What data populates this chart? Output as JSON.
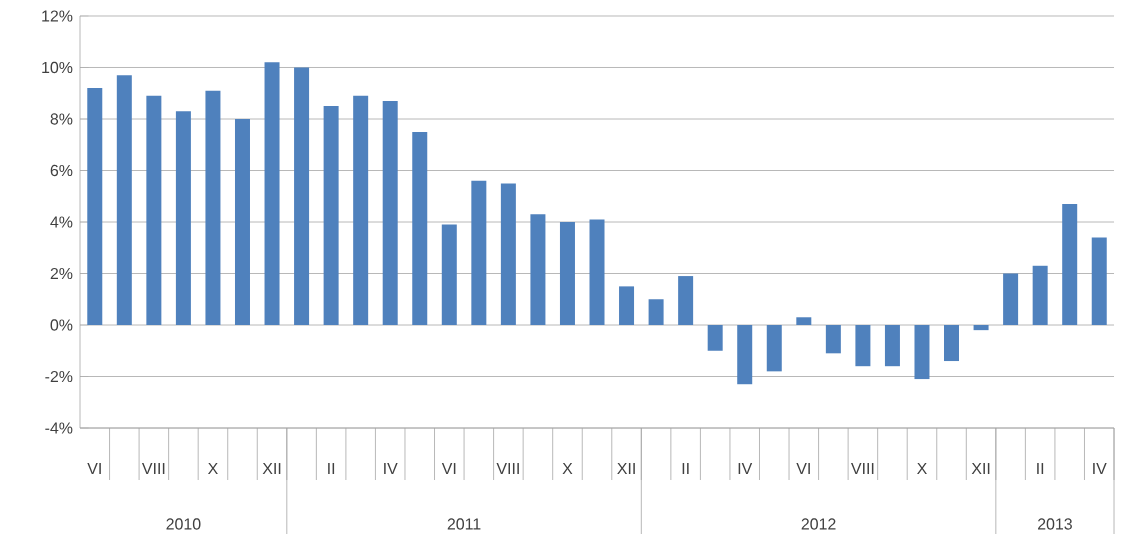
{
  "chart_data": {
    "type": "bar",
    "color": "#4f81bd",
    "categories": [
      "VI",
      null,
      "VIII",
      null,
      "X",
      null,
      "XII",
      null,
      "II",
      null,
      "IV",
      null,
      "VI",
      null,
      "VIII",
      null,
      "X",
      null,
      "XII",
      null,
      "II",
      null,
      "IV",
      null,
      "VI",
      null,
      "VIII",
      null,
      "X",
      null,
      "XII",
      null,
      "II",
      null,
      "IV"
    ],
    "values": [
      9.2,
      9.7,
      8.9,
      8.3,
      9.1,
      8.0,
      10.2,
      10.0,
      8.5,
      8.9,
      8.7,
      7.5,
      3.9,
      5.6,
      5.5,
      4.3,
      4.0,
      4.1,
      1.5,
      1.0,
      1.9,
      -1.0,
      -2.3,
      -1.8,
      0.3,
      -1.1,
      -1.6,
      -1.6,
      -2.1,
      -1.4,
      -0.2,
      2.0,
      2.3,
      4.7,
      3.4
    ],
    "ylim": [
      -4,
      12
    ],
    "yticks": [
      {
        "value": -4,
        "label": "-4%"
      },
      {
        "value": -2,
        "label": "-2%"
      },
      {
        "value": 0,
        "label": "0%"
      },
      {
        "value": 2,
        "label": "2%"
      },
      {
        "value": 4,
        "label": "4%"
      },
      {
        "value": 6,
        "label": "6%"
      },
      {
        "value": 8,
        "label": "8%"
      },
      {
        "value": 10,
        "label": "10%"
      },
      {
        "value": 12,
        "label": "12%"
      }
    ],
    "grid": "y",
    "annotations": [
      "2010",
      "2011",
      "2012",
      "2013"
    ]
  }
}
